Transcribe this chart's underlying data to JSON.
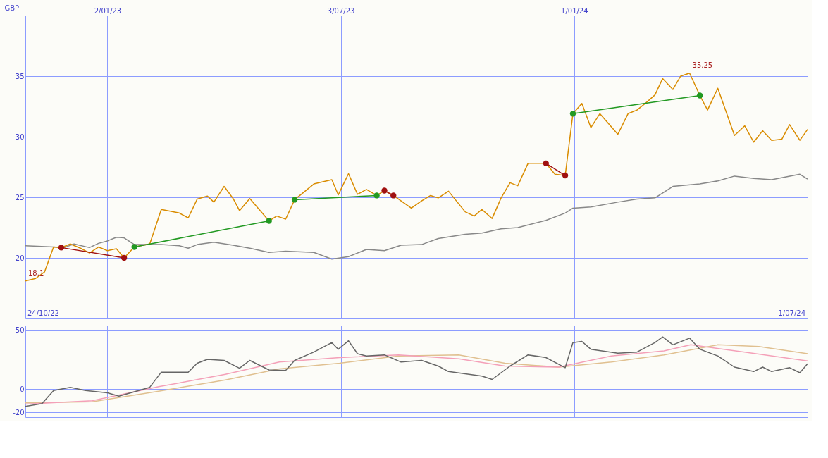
{
  "chart_data": [
    {
      "type": "line",
      "ylabel": "GBP",
      "xlim": [
        "2022-10-30",
        "2024-07-01"
      ],
      "ylim": [
        15,
        40
      ],
      "yticks": [
        20,
        25,
        30,
        35
      ],
      "xticks": [
        {
          "value": "2023-01-02",
          "label": "2/01/23"
        },
        {
          "value": "2023-07-03",
          "label": "3/07/23"
        },
        {
          "value": "2024-01-01",
          "label": "1/01/24"
        }
      ],
      "grid": true,
      "tick_labels": "xy",
      "annotations": [
        "24/10/22",
        "1/07/24",
        {
          "text": "18.1",
          "x": "2022-10-30",
          "y": 18.1
        },
        {
          "text": "35.25",
          "x": "2024-03-31",
          "y": 35.25
        }
      ],
      "series": [
        {
          "color": "#888888",
          "x": [
            "2022-10-30",
            "2022-11-21",
            "2022-11-29",
            "2022-12-07",
            "2022-12-19",
            "2022-12-26",
            "2023-01-02",
            "2023-01-09",
            "2023-01-15",
            "2023-01-23",
            "2023-02-04",
            "2023-02-13",
            "2023-02-27",
            "2023-03-06",
            "2023-03-13",
            "2023-03-26",
            "2023-04-10",
            "2023-04-23",
            "2023-05-08",
            "2023-05-21",
            "2023-06-12",
            "2023-06-26",
            "2023-07-09",
            "2023-07-23",
            "2023-08-06",
            "2023-08-19",
            "2023-09-04",
            "2023-09-17",
            "2023-10-08",
            "2023-10-21",
            "2023-11-05",
            "2023-11-18",
            "2023-12-10",
            "2023-12-25",
            "2023-12-31",
            "2024-01-14",
            "2024-02-04",
            "2024-02-19",
            "2024-03-04",
            "2024-03-18",
            "2024-04-08",
            "2024-04-22",
            "2024-05-05",
            "2024-05-20",
            "2024-06-03",
            "2024-06-25",
            "2024-07-01"
          ],
          "values": [
            21.0,
            20.9,
            20.85,
            21.15,
            20.85,
            21.2,
            21.4,
            21.7,
            21.65,
            21.1,
            21.1,
            21.1,
            21.0,
            20.8,
            21.1,
            21.3,
            21.05,
            20.8,
            20.45,
            20.55,
            20.45,
            19.9,
            20.1,
            20.7,
            20.6,
            21.05,
            21.1,
            21.6,
            21.95,
            22.05,
            22.4,
            22.5,
            23.1,
            23.7,
            24.1,
            24.2,
            24.6,
            24.85,
            24.95,
            25.9,
            26.1,
            26.35,
            26.75,
            26.55,
            26.45,
            26.9,
            26.5
          ]
        },
        {
          "color": "#d98c00",
          "x": [
            "2022-10-30",
            "2022-11-07",
            "2022-11-14",
            "2022-11-21",
            "2022-11-27",
            "2022-12-04",
            "2022-12-12",
            "2022-12-19",
            "2022-12-26",
            "2023-01-02",
            "2023-01-09",
            "2023-01-15",
            "2023-01-23",
            "2023-02-04",
            "2023-02-13",
            "2023-02-27",
            "2023-03-06",
            "2023-03-13",
            "2023-03-21",
            "2023-03-26",
            "2023-04-03",
            "2023-04-10",
            "2023-04-15",
            "2023-04-23",
            "2023-05-08",
            "2023-05-14",
            "2023-05-21",
            "2023-05-28",
            "2023-06-12",
            "2023-06-26",
            "2023-07-01",
            "2023-07-09",
            "2023-07-16",
            "2023-07-23",
            "2023-07-31",
            "2023-08-06",
            "2023-08-13",
            "2023-08-19",
            "2023-08-27",
            "2023-09-04",
            "2023-09-11",
            "2023-09-17",
            "2023-09-25",
            "2023-10-08",
            "2023-10-15",
            "2023-10-21",
            "2023-10-29",
            "2023-11-05",
            "2023-11-12",
            "2023-11-18",
            "2023-11-26",
            "2023-12-10",
            "2023-12-17",
            "2023-12-25",
            "2023-12-31",
            "2024-01-07",
            "2024-01-14",
            "2024-01-21",
            "2024-02-04",
            "2024-02-12",
            "2024-02-19",
            "2024-02-26",
            "2024-03-04",
            "2024-03-10",
            "2024-03-18",
            "2024-03-24",
            "2024-03-31",
            "2024-04-08",
            "2024-04-14",
            "2024-04-22",
            "2024-05-05",
            "2024-05-13",
            "2024-05-20",
            "2024-05-27",
            "2024-06-03",
            "2024-06-11",
            "2024-06-17",
            "2024-06-25",
            "2024-07-01"
          ],
          "values": [
            18.1,
            18.3,
            18.85,
            20.9,
            20.85,
            21.15,
            20.8,
            20.4,
            20.9,
            20.6,
            20.75,
            20.0,
            20.9,
            21.15,
            24.0,
            23.7,
            23.3,
            24.85,
            25.1,
            24.6,
            25.9,
            24.9,
            23.9,
            24.9,
            23.05,
            23.45,
            23.2,
            24.8,
            26.1,
            26.45,
            25.2,
            26.95,
            25.25,
            25.65,
            25.15,
            25.55,
            25.15,
            24.7,
            24.1,
            24.7,
            25.15,
            24.95,
            25.5,
            23.8,
            23.45,
            24.0,
            23.25,
            24.95,
            26.2,
            25.95,
            27.8,
            27.8,
            26.9,
            26.8,
            31.9,
            32.75,
            30.75,
            31.9,
            30.2,
            31.9,
            32.2,
            32.8,
            33.45,
            34.8,
            33.9,
            35.0,
            35.25,
            33.4,
            32.2,
            34.0,
            30.1,
            30.9,
            29.55,
            30.5,
            29.7,
            29.8,
            31.0,
            29.7,
            30.6
          ]
        },
        {
          "color": "#a01010",
          "marker": "circle",
          "x": [
            "2022-11-27",
            "2023-01-15"
          ],
          "values": [
            20.85,
            20.0
          ]
        },
        {
          "color": "#229922",
          "marker": "circle",
          "x": [
            "2023-01-23",
            "2023-05-08"
          ],
          "values": [
            20.9,
            23.05
          ]
        },
        {
          "color": "#229922",
          "marker": "circle",
          "x": [
            "2023-05-28",
            "2023-07-31"
          ],
          "values": [
            24.8,
            25.15
          ]
        },
        {
          "color": "#a01010",
          "marker": "circle",
          "x": [
            "2023-08-06",
            "2023-08-13"
          ],
          "values": [
            25.55,
            25.15
          ]
        },
        {
          "color": "#a01010",
          "marker": "circle",
          "x": [
            "2023-12-10",
            "2023-12-25"
          ],
          "values": [
            27.8,
            26.8
          ]
        },
        {
          "color": "#229922",
          "marker": "circle",
          "x": [
            "2023-12-31",
            "2024-04-08"
          ],
          "values": [
            31.9,
            33.4
          ]
        }
      ]
    },
    {
      "type": "line",
      "xlim": [
        "2022-10-30",
        "2024-07-01"
      ],
      "ylim": [
        -24,
        54
      ],
      "yticks": [
        -20,
        0,
        50
      ],
      "xticks": [
        {
          "value": "2023-01-02",
          "label": null
        },
        {
          "value": "2023-07-03",
          "label": null
        },
        {
          "value": "2024-01-01",
          "label": null
        }
      ],
      "grid": true,
      "tick_labels": "y",
      "series": [
        {
          "color": "#e0c090",
          "x": [
            "2022-10-30",
            "2022-12-21",
            "2023-02-11",
            "2023-04-04",
            "2023-05-16",
            "2023-07-02",
            "2023-08-17",
            "2023-10-03",
            "2023-11-08",
            "2023-12-20",
            "2024-01-30",
            "2024-03-11",
            "2024-04-22",
            "2024-05-24",
            "2024-07-01"
          ],
          "values": [
            -11.9,
            -11,
            -1.9,
            7.6,
            17.1,
            21.9,
            28.1,
            29,
            21.9,
            18.6,
            22.9,
            29,
            37.6,
            36.2,
            30
          ]
        },
        {
          "color": "#f4a0b8",
          "x": [
            "2022-10-30",
            "2022-12-21",
            "2023-02-11",
            "2023-04-04",
            "2023-05-16",
            "2023-07-02",
            "2023-08-17",
            "2023-10-03",
            "2023-11-08",
            "2023-12-20",
            "2024-01-30",
            "2024-03-11",
            "2024-04-01",
            "2024-05-13",
            "2024-07-01"
          ],
          "values": [
            -12.9,
            -10,
            1.9,
            12.4,
            22.9,
            26.7,
            29,
            25.7,
            19.5,
            18.6,
            28.1,
            32.4,
            37.6,
            31.4,
            23.8
          ]
        },
        {
          "color": "#666666",
          "x": [
            "2022-10-30",
            "2022-11-12",
            "2022-11-21",
            "2022-12-04",
            "2022-12-16",
            "2023-01-02",
            "2023-01-11",
            "2023-02-04",
            "2023-02-13",
            "2023-03-06",
            "2023-03-13",
            "2023-03-21",
            "2023-04-03",
            "2023-04-15",
            "2023-04-23",
            "2023-05-08",
            "2023-05-21",
            "2023-05-28",
            "2023-06-12",
            "2023-06-26",
            "2023-07-01",
            "2023-07-09",
            "2023-07-16",
            "2023-07-23",
            "2023-08-06",
            "2023-08-19",
            "2023-09-04",
            "2023-09-17",
            "2023-09-25",
            "2023-10-21",
            "2023-10-29",
            "2023-11-12",
            "2023-11-26",
            "2023-12-10",
            "2023-12-25",
            "2023-12-31",
            "2024-01-07",
            "2024-01-14",
            "2024-02-04",
            "2024-02-19",
            "2024-03-04",
            "2024-03-10",
            "2024-03-18",
            "2024-03-31",
            "2024-04-08",
            "2024-04-22",
            "2024-05-05",
            "2024-05-20",
            "2024-05-27",
            "2024-06-03",
            "2024-06-17",
            "2024-06-25",
            "2024-07-01"
          ],
          "values": [
            -14.8,
            -12.4,
            -1.4,
            1.4,
            -1.4,
            -3.3,
            -6.2,
            1.4,
            14.3,
            14.3,
            21.9,
            25.2,
            24.3,
            17.6,
            24.3,
            16.2,
            15.7,
            24.3,
            31.4,
            39.5,
            33.8,
            41,
            30,
            28.1,
            29,
            22.9,
            24.3,
            19.5,
            14.8,
            11,
            8.1,
            19.5,
            29,
            26.7,
            18.1,
            39.5,
            40.5,
            33.8,
            30.5,
            31.4,
            39.5,
            44.3,
            37.6,
            43.3,
            33.8,
            28.1,
            18.6,
            14.8,
            18.6,
            14.8,
            18.1,
            13.8,
            21.4
          ]
        }
      ]
    }
  ]
}
